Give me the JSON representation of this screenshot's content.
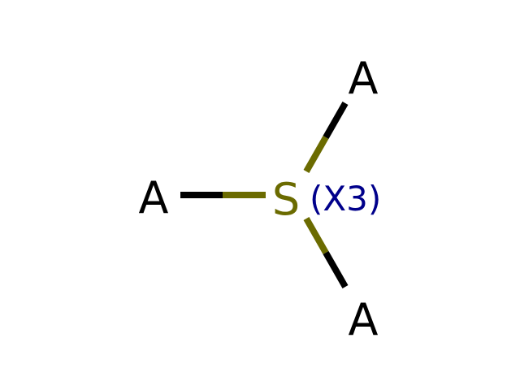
{
  "molecule": {
    "center_atom": {
      "symbol": "S",
      "annotation": "(X3)",
      "color": "#6b6b00"
    },
    "substituents": [
      {
        "symbol": "A",
        "color": "#000000"
      },
      {
        "symbol": "A",
        "color": "#000000"
      },
      {
        "symbol": "A",
        "color": "#000000"
      }
    ],
    "annotation_color": "#00008b",
    "bond_color": "#000000"
  }
}
